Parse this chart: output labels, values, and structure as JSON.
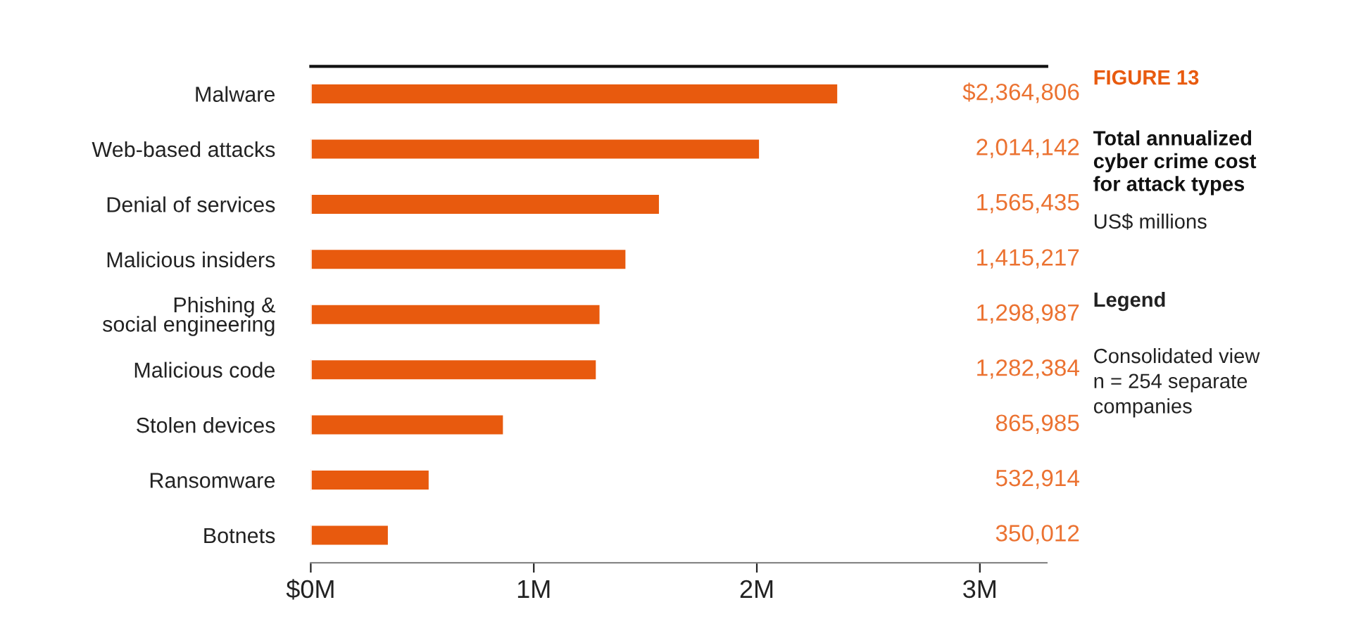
{
  "chart_data": {
    "type": "bar",
    "orientation": "horizontal",
    "title": "FIGURE 13",
    "subtitle": "Total annualized\ncyber crime cost\nfor attack types",
    "annotations": [
      "US$ millions",
      "Legend",
      "Consolidated view\nn = 254 separate\ncompanies"
    ],
    "categories": [
      "Malware",
      "Web-based attacks",
      "Denial of services",
      "Malicious insiders",
      "Phishing &\nsocial engineering",
      "Malicious code",
      "Stolen devices",
      "Ransomware",
      "Botnets"
    ],
    "values": [
      2364806,
      2014142,
      1565435,
      1415217,
      1298987,
      1282384,
      865985,
      532914,
      350012
    ],
    "value_labels": [
      "$2,364,806",
      "2,014,142",
      "1,565,435",
      "1,415,217",
      "1,298,987",
      "1,282,384",
      "865,985",
      "532,914",
      "350,012"
    ],
    "color": "#e85a0e",
    "xlim": [
      0,
      3300000
    ],
    "xticks": [
      {
        "value": 0,
        "label": "$0M"
      },
      {
        "value": 1000000,
        "label": "1M"
      },
      {
        "value": 2000000,
        "label": "2M"
      },
      {
        "value": 3000000,
        "label": "3M"
      }
    ],
    "grid": false,
    "legend": false
  }
}
